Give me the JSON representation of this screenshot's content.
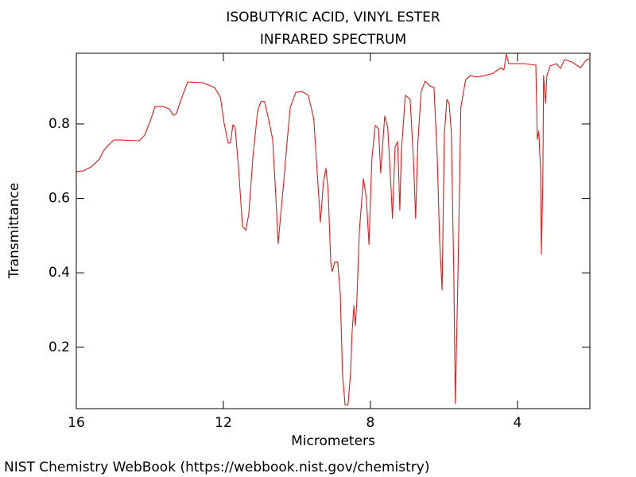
{
  "chart_data": {
    "type": "line",
    "title": "ISOBUTYRIC ACID, VINYL ESTER",
    "subtitle": "INFRARED SPECTRUM",
    "x_label": "Micrometers",
    "y_label": "Transmittance",
    "source": "NIST Chemistry WebBook (https://webbook.nist.gov/chemistry)",
    "color": "#e8191b",
    "xlim": [
      16,
      2.03
    ],
    "ylim": [
      0.035,
      0.99
    ],
    "xticks": [
      16,
      12,
      8,
      4
    ],
    "yticks": [
      0.2,
      0.4,
      0.6,
      0.8
    ],
    "x": [
      16,
      15.81,
      15.59,
      15.37,
      15.26,
      15.09,
      14.98,
      14.83,
      14.29,
      14.14,
      13.97,
      13.86,
      13.64,
      13.47,
      13.36,
      13.28,
      13.15,
      12.97,
      12.56,
      12.24,
      12.08,
      11.98,
      11.87,
      11.81,
      11.74,
      11.68,
      11.59,
      11.48,
      11.39,
      11.31,
      11.2,
      11.07,
      10.98,
      10.88,
      10.77,
      10.66,
      10.57,
      10.51,
      10.44,
      10.36,
      10.27,
      10.18,
      10.03,
      9.86,
      9.69,
      9.54,
      9.43,
      9.36,
      9.28,
      9.21,
      9.15,
      9.08,
      9.04,
      8.97,
      8.89,
      8.82,
      8.76,
      8.69,
      8.61,
      8.54,
      8.5,
      8.45,
      8.41,
      8.37,
      8.3,
      8.19,
      8.11,
      8.04,
      7.96,
      7.87,
      7.78,
      7.72,
      7.68,
      7.61,
      7.53,
      7.44,
      7.4,
      7.33,
      7.26,
      7.2,
      7.16,
      7.05,
      6.92,
      6.83,
      6.77,
      6.71,
      6.62,
      6.51,
      6.38,
      6.27,
      6.18,
      6.12,
      6.05,
      5.99,
      5.92,
      5.86,
      5.8,
      5.73,
      5.69,
      5.62,
      5.54,
      5.41,
      5.28,
      5.1,
      4.89,
      4.67,
      4.45,
      4.37,
      4.3,
      4.24,
      3.81,
      3.5,
      3.46,
      3.42,
      3.37,
      3.35,
      3.31,
      3.29,
      3.24,
      3.2,
      3.11,
      2.94,
      2.83,
      2.72,
      2.51,
      2.29,
      2.12,
      2.03
    ],
    "values": [
      0.672,
      0.674,
      0.685,
      0.706,
      0.728,
      0.747,
      0.757,
      0.757,
      0.755,
      0.77,
      0.813,
      0.847,
      0.847,
      0.84,
      0.823,
      0.827,
      0.866,
      0.913,
      0.911,
      0.898,
      0.872,
      0.802,
      0.749,
      0.749,
      0.798,
      0.791,
      0.685,
      0.525,
      0.514,
      0.557,
      0.706,
      0.834,
      0.86,
      0.86,
      0.813,
      0.759,
      0.6,
      0.478,
      0.557,
      0.642,
      0.749,
      0.845,
      0.885,
      0.887,
      0.877,
      0.813,
      0.642,
      0.536,
      0.642,
      0.681,
      0.621,
      0.429,
      0.403,
      0.429,
      0.429,
      0.344,
      0.13,
      0.045,
      0.045,
      0.13,
      0.237,
      0.312,
      0.258,
      0.322,
      0.514,
      0.653,
      0.6,
      0.476,
      0.706,
      0.796,
      0.787,
      0.668,
      0.728,
      0.821,
      0.791,
      0.63,
      0.546,
      0.738,
      0.753,
      0.568,
      0.723,
      0.877,
      0.866,
      0.706,
      0.546,
      0.749,
      0.887,
      0.915,
      0.902,
      0.898,
      0.706,
      0.493,
      0.354,
      0.77,
      0.866,
      0.855,
      0.781,
      0.386,
      0.049,
      0.386,
      0.845,
      0.919,
      0.93,
      0.926,
      0.93,
      0.936,
      0.951,
      0.945,
      0.988,
      0.962,
      0.962,
      0.958,
      0.759,
      0.781,
      0.674,
      0.45,
      0.642,
      0.93,
      0.855,
      0.93,
      0.956,
      0.962,
      0.949,
      0.973,
      0.966,
      0.951,
      0.973,
      0.975
    ]
  }
}
